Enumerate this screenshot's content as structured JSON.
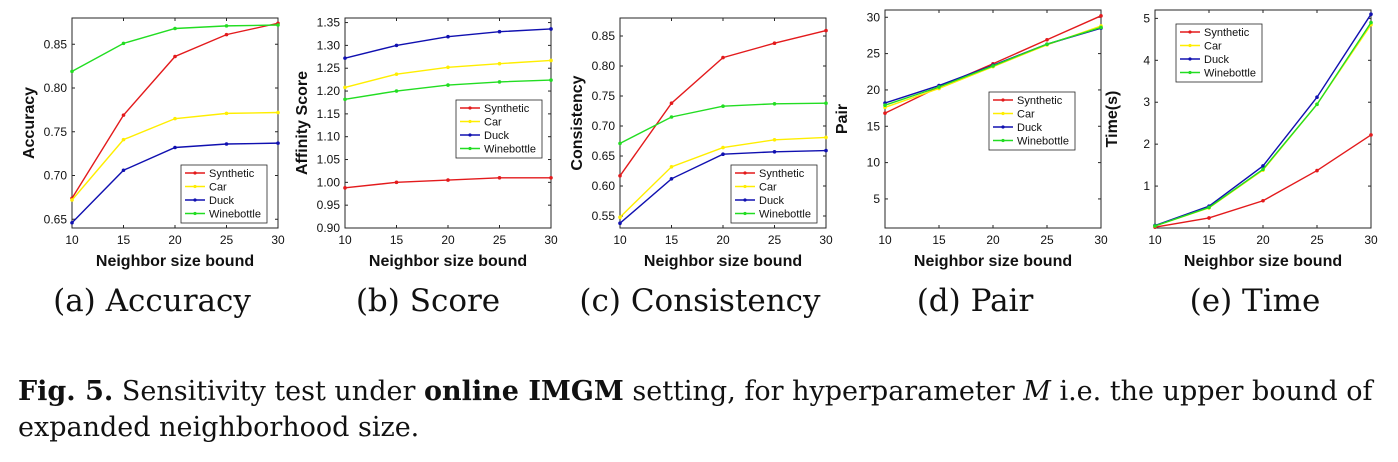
{
  "colors": {
    "Synthetic": "#e31a1c",
    "Car": "#ffee00",
    "Duck": "#1010b0",
    "Winebottle": "#22dd22"
  },
  "chart_data": [
    {
      "type": "line",
      "caption": "(a) Accuracy",
      "xlabel": "Neighbor size bound",
      "ylabel": "Accuracy",
      "xlim": [
        10,
        30
      ],
      "ylim": [
        0.64,
        0.88
      ],
      "xticks": [
        10,
        15,
        20,
        25,
        30
      ],
      "yticks": [
        0.65,
        0.7,
        0.75,
        0.8,
        0.85
      ],
      "ytick_labels": [
        "0.65",
        "0.70",
        "0.75",
        "0.80",
        "0.85"
      ],
      "legend": "bottom-right",
      "x": [
        10,
        15,
        20,
        25,
        30
      ],
      "series": [
        {
          "name": "Synthetic",
          "values": [
            0.674,
            0.769,
            0.836,
            0.861,
            0.874
          ]
        },
        {
          "name": "Car",
          "values": [
            0.672,
            0.741,
            0.765,
            0.771,
            0.772
          ]
        },
        {
          "name": "Duck",
          "values": [
            0.646,
            0.706,
            0.732,
            0.736,
            0.737
          ]
        },
        {
          "name": "Winebottle",
          "values": [
            0.819,
            0.851,
            0.868,
            0.871,
            0.872
          ]
        }
      ]
    },
    {
      "type": "line",
      "caption": "(b) Score",
      "xlabel": "Neighbor size bound",
      "ylabel": "Affinity Score",
      "xlim": [
        10,
        30
      ],
      "ylim": [
        0.9,
        1.36
      ],
      "xticks": [
        10,
        15,
        20,
        25,
        30
      ],
      "yticks": [
        0.9,
        0.95,
        1.0,
        1.05,
        1.1,
        1.15,
        1.2,
        1.25,
        1.3,
        1.35
      ],
      "ytick_labels": [
        "0.90",
        "0.95",
        "1.00",
        "1.05",
        "1.10",
        "1.15",
        "1.20",
        "1.25",
        "1.30",
        "1.35"
      ],
      "legend": "center-right",
      "x": [
        10,
        15,
        20,
        25,
        30
      ],
      "series": [
        {
          "name": "Synthetic",
          "values": [
            0.988,
            1.0,
            1.005,
            1.01,
            1.01
          ]
        },
        {
          "name": "Car",
          "values": [
            1.208,
            1.237,
            1.252,
            1.26,
            1.267
          ]
        },
        {
          "name": "Duck",
          "values": [
            1.272,
            1.3,
            1.319,
            1.33,
            1.336
          ]
        },
        {
          "name": "Winebottle",
          "values": [
            1.182,
            1.2,
            1.213,
            1.22,
            1.224
          ]
        }
      ]
    },
    {
      "type": "line",
      "caption": "(c) Consistency",
      "xlabel": "Neighbor size bound",
      "ylabel": "Consistency",
      "xlim": [
        10,
        30
      ],
      "ylim": [
        0.53,
        0.88
      ],
      "xticks": [
        10,
        15,
        20,
        25,
        30
      ],
      "yticks": [
        0.55,
        0.6,
        0.65,
        0.7,
        0.75,
        0.8,
        0.85
      ],
      "ytick_labels": [
        "0.55",
        "0.60",
        "0.65",
        "0.70",
        "0.75",
        "0.80",
        "0.85"
      ],
      "legend": "bottom-right",
      "x": [
        10,
        15,
        20,
        25,
        30
      ],
      "series": [
        {
          "name": "Synthetic",
          "values": [
            0.617,
            0.738,
            0.814,
            0.838,
            0.859
          ]
        },
        {
          "name": "Car",
          "values": [
            0.548,
            0.632,
            0.664,
            0.677,
            0.681
          ]
        },
        {
          "name": "Duck",
          "values": [
            0.538,
            0.612,
            0.653,
            0.657,
            0.659
          ]
        },
        {
          "name": "Winebottle",
          "values": [
            0.671,
            0.715,
            0.733,
            0.737,
            0.738
          ]
        }
      ]
    },
    {
      "type": "line",
      "caption": "(d) Pair",
      "xlabel": "Neighbor size bound",
      "ylabel": "Pair",
      "xlim": [
        10,
        30
      ],
      "ylim": [
        1,
        31
      ],
      "xticks": [
        10,
        15,
        20,
        25,
        30
      ],
      "yticks": [
        5,
        10,
        15,
        20,
        25,
        30
      ],
      "ytick_labels": [
        "5",
        "10",
        "15",
        "20",
        "25",
        "30"
      ],
      "legend": "upper-right",
      "x": [
        10,
        15,
        20,
        25,
        30
      ],
      "series": [
        {
          "name": "Synthetic",
          "values": [
            16.8,
            20.4,
            23.6,
            26.9,
            30.2
          ]
        },
        {
          "name": "Car",
          "values": [
            17.6,
            20.2,
            23.2,
            26.2,
            28.8
          ]
        },
        {
          "name": "Duck",
          "values": [
            18.2,
            20.6,
            23.4,
            26.3,
            28.5
          ]
        },
        {
          "name": "Winebottle",
          "values": [
            17.9,
            20.4,
            23.3,
            26.3,
            28.6
          ]
        }
      ]
    },
    {
      "type": "line",
      "caption": "(e) Time",
      "xlabel": "Neighbor size bound",
      "ylabel": "Time(s)",
      "xlim": [
        10,
        30
      ],
      "ylim": [
        0,
        5.2
      ],
      "xticks": [
        10,
        15,
        20,
        25,
        30
      ],
      "yticks": [
        1,
        2,
        3,
        4,
        5
      ],
      "ytick_labels": [
        "1",
        "2",
        "3",
        "4",
        "5"
      ],
      "legend": "upper-left",
      "x": [
        10,
        15,
        20,
        25,
        30
      ],
      "series": [
        {
          "name": "Synthetic",
          "values": [
            0.02,
            0.24,
            0.65,
            1.37,
            2.22
          ]
        },
        {
          "name": "Car",
          "values": [
            0.05,
            0.48,
            1.38,
            2.95,
            4.85
          ]
        },
        {
          "name": "Duck",
          "values": [
            0.06,
            0.52,
            1.48,
            3.12,
            5.1
          ]
        },
        {
          "name": "Winebottle",
          "values": [
            0.05,
            0.49,
            1.4,
            2.95,
            4.9
          ]
        }
      ]
    }
  ],
  "figure_caption": {
    "label": "Fig. 5.",
    "text_1": " Sensitivity test under ",
    "bold_1": "online IMGM",
    "text_2": " setting, for hyperparameter ",
    "var": "M",
    "text_3": " i.e. the upper bound of expanded neighborhood size."
  }
}
